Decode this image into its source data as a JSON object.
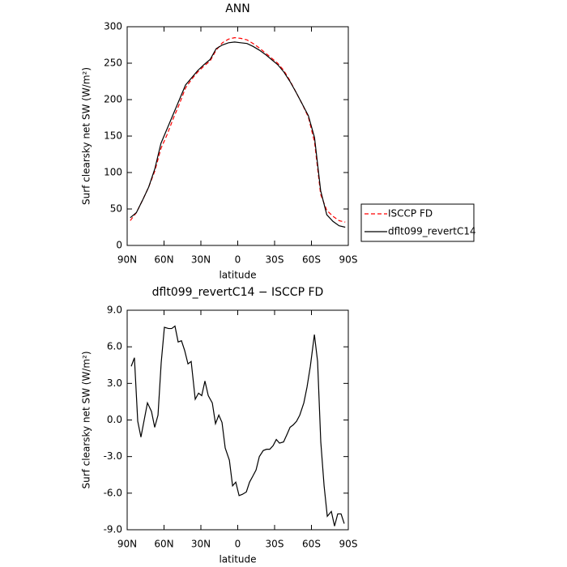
{
  "chart_data": [
    {
      "type": "line",
      "title": "ANN",
      "xlabel": "latitude",
      "ylabel": "Surf clearsky net SW (W/m²)",
      "x": [
        87.5,
        82.5,
        77.5,
        72.5,
        67.5,
        62.5,
        57.5,
        52.5,
        47.5,
        42.5,
        37.5,
        32.5,
        27.5,
        22.5,
        17.5,
        12.5,
        7.5,
        2.5,
        -2.5,
        -7.5,
        -12.5,
        -17.5,
        -22.5,
        -27.5,
        -32.5,
        -37.5,
        -42.5,
        -47.5,
        -52.5,
        -57.5,
        -62.5,
        -67.5,
        -72.5,
        -77.5,
        -82.5,
        -87.5
      ],
      "series": [
        {
          "name": "ISCCP FD",
          "color": "#ff0000",
          "linestyle": "dashed",
          "values": [
            34,
            45,
            62,
            80,
            102,
            133,
            152,
            174,
            194,
            216,
            228,
            238,
            246,
            253,
            268,
            278,
            283,
            285,
            284,
            282,
            277,
            271,
            264,
            257,
            250,
            240,
            226,
            210,
            194,
            176,
            142,
            70,
            48,
            40,
            34,
            32
          ]
        },
        {
          "name": "dflt099_revertC14",
          "color": "#000000",
          "linestyle": "solid",
          "values": [
            38,
            45,
            62,
            80,
            105,
            140,
            160,
            180,
            200,
            220,
            230,
            240,
            248,
            255,
            270,
            275,
            278,
            279,
            278,
            277,
            273,
            268,
            262,
            255,
            248,
            238,
            225,
            210,
            194,
            178,
            148,
            75,
            42,
            33,
            27,
            25
          ]
        }
      ],
      "xlim": [
        90,
        -90
      ],
      "xticks": [
        {
          "value": 90,
          "label": "90N"
        },
        {
          "value": 60,
          "label": "60N"
        },
        {
          "value": 30,
          "label": "30N"
        },
        0,
        {
          "value": -30,
          "label": "30S"
        },
        {
          "value": -60,
          "label": "60S"
        },
        {
          "value": -90,
          "label": "90S"
        }
      ],
      "ylim": [
        0,
        300
      ],
      "yticks": [
        0,
        50,
        100,
        150,
        200,
        250,
        300
      ],
      "legend": "outside-right"
    },
    {
      "type": "line",
      "title": "dflt099_revertC14 − ISCCP FD",
      "xlabel": "latitude",
      "ylabel": "Surf clearsky net SW (W/m²)",
      "x": [
        86.7,
        84.1,
        81.4,
        78.8,
        73.5,
        70.2,
        67.6,
        64.9,
        62.3,
        59.7,
        56.4,
        53.7,
        51.1,
        48.5,
        45.8,
        43.2,
        40.5,
        37.9,
        34.6,
        31.9,
        29.3,
        26.7,
        24.0,
        20.7,
        18.1,
        15.4,
        12.8,
        10.2,
        6.8,
        4.2,
        1.6,
        -1.1,
        -3.7,
        -7.0,
        -9.6,
        -12.3,
        -14.9,
        -17.6,
        -20.8,
        -23.5,
        -26.1,
        -28.8,
        -31.4,
        -34.0,
        -37.3,
        -40.0,
        -42.6,
        -45.2,
        -47.9,
        -50.5,
        -53.8,
        -56.4,
        -59.1,
        -62.4,
        -65.0,
        -67.6,
        -70.3,
        -72.9,
        -76.2,
        -78.8,
        -81.4,
        -84.1,
        -86.7
      ],
      "series": [
        {
          "name": "dflt099_revertC14 − ISCCP FD",
          "color": "#000000",
          "linestyle": "solid",
          "values": [
            4.4,
            5.1,
            -0.1,
            -1.4,
            1.4,
            0.7,
            -0.6,
            0.4,
            4.7,
            7.6,
            7.5,
            7.5,
            7.7,
            6.4,
            6.5,
            5.7,
            4.6,
            4.8,
            1.7,
            2.2,
            2.0,
            3.2,
            2.0,
            1.4,
            -0.3,
            0.4,
            -0.2,
            -2.3,
            -3.3,
            -5.4,
            -5.1,
            -6.2,
            -6.1,
            -5.9,
            -5.1,
            -4.6,
            -4.1,
            -3.0,
            -2.5,
            -2.4,
            -2.4,
            -2.1,
            -1.6,
            -1.9,
            -1.8,
            -1.2,
            -0.6,
            -0.4,
            -0.1,
            0.4,
            1.4,
            2.7,
            4.4,
            7.0,
            4.8,
            -1.8,
            -5.4,
            -7.9,
            -7.5,
            -8.7,
            -7.7,
            -7.7,
            -8.5
          ]
        }
      ],
      "xlim": [
        90,
        -90
      ],
      "xticks": [
        {
          "value": 90,
          "label": "90N"
        },
        {
          "value": 60,
          "label": "60N"
        },
        {
          "value": 30,
          "label": "30N"
        },
        0,
        {
          "value": -30,
          "label": "30S"
        },
        {
          "value": -60,
          "label": "60S"
        },
        {
          "value": -90,
          "label": "90S"
        }
      ],
      "ylim": [
        -9,
        9
      ],
      "yticks": [
        {
          "value": -9,
          "label": "-9.0"
        },
        {
          "value": -6,
          "label": "-6.0"
        },
        {
          "value": -3,
          "label": "-3.0"
        },
        {
          "value": 0,
          "label": "0.0"
        },
        {
          "value": 3,
          "label": "3.0"
        },
        {
          "value": 6,
          "label": "6.0"
        },
        {
          "value": 9,
          "label": "9.0"
        }
      ]
    }
  ]
}
